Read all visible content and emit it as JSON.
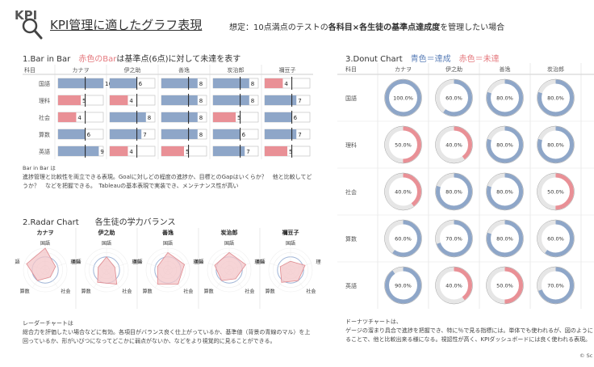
{
  "header": {
    "logo_text": "KPI",
    "title": "KPI管理に適したグラフ表現",
    "subtitle_pre": "想定：10点満点のテストの",
    "subtitle_bold": "各科目×各生徒の基準点達成度",
    "subtitle_post": "を管理したい場合"
  },
  "colors": {
    "blue": "#8ea6c8",
    "red": "#e99096",
    "grid": "#d9d9d9",
    "radar_fill": "#f3c6c8",
    "radar_line": "#e08a8f"
  },
  "section1": {
    "title_pre": "1.Bar in Bar　",
    "title_red": "赤色のBar",
    "title_post": "は基準点(6点)に対して未達を表す",
    "corner_label": "科目",
    "note_head": "Bar in Bar は",
    "note_line1": "進捗管理と比較性を両立できる表現。Goalに対しどの程度の進捗か、目標とのGapはいくらか？　他と比較してど",
    "note_line2": "うか？　などを把握できる。　Tableauの基本表現で実装でき、メンテナンス性が高い"
  },
  "section2": {
    "title": "2.Radar Chart　　各生徒の学力バランス",
    "note_head": "レーダーチャートは",
    "note_line1": "総合力を評価したい場合などに有効。各項目がバランス良く仕上がっているか、基準値（背景の青線のマル）を上",
    "note_line2": "回っているか、形がいびつになってどこかに弱点がないか、などをより視覚的に見ることができる。"
  },
  "section3": {
    "title_pre": "3.Donut Chart　",
    "title_blue": "青色＝達成",
    "title_red": "赤色＝未達",
    "corner_label": "科目",
    "note_head": "ドーナツチャートは、",
    "note_line1": "ゲージの溜まり具合で進捗を把握でき、特に％で見る指標には。単体でも使われるが、図のように",
    "note_line2": "ることで、他と比較出来る様になる。視認性が高く、KPIダッシュボードには良く使われる表現。"
  },
  "footer": {
    "credit": "© Sc"
  },
  "chart_data": [
    {
      "type": "bar",
      "title": "Bar in Bar",
      "students": [
        "カナヲ",
        "伊之助",
        "善逸",
        "炭治郎",
        "禰豆子"
      ],
      "categories": [
        "国語",
        "理科",
        "社会",
        "算数",
        "英語"
      ],
      "target": 6,
      "max": 10,
      "series": [
        {
          "name": "カナヲ",
          "values": [
            10,
            5,
            4,
            6,
            9
          ]
        },
        {
          "name": "伊之助",
          "values": [
            6,
            4,
            8,
            7,
            4
          ]
        },
        {
          "name": "善逸",
          "values": [
            8,
            8,
            8,
            8,
            5
          ]
        },
        {
          "name": "炭治郎",
          "values": [
            8,
            8,
            5,
            6,
            7
          ]
        },
        {
          "name": "禰豆子",
          "values": [
            4,
            7,
            6,
            7,
            5
          ]
        }
      ]
    },
    {
      "type": "radar",
      "students": [
        "カナヲ",
        "伊之助",
        "善逸",
        "炭治郎",
        "禰豆子"
      ],
      "axes": [
        "国語",
        "理科",
        "社会",
        "算数",
        "英語"
      ],
      "max": 10,
      "target": 6,
      "series": [
        {
          "name": "カナヲ",
          "values": [
            10,
            5,
            4,
            6,
            9
          ]
        },
        {
          "name": "伊之助",
          "values": [
            6,
            4,
            8,
            7,
            4
          ]
        },
        {
          "name": "善逸",
          "values": [
            8,
            8,
            8,
            8,
            5
          ]
        },
        {
          "name": "炭治郎",
          "values": [
            8,
            8,
            5,
            6,
            7
          ]
        },
        {
          "name": "禰豆子",
          "values": [
            4,
            7,
            6,
            7,
            5
          ]
        }
      ]
    },
    {
      "type": "pie",
      "subtype": "donut",
      "students": [
        "カナヲ",
        "伊之助",
        "善逸",
        "炭治郎"
      ],
      "categories": [
        "国語",
        "理科",
        "社会",
        "算数",
        "英語"
      ],
      "target_pct": 60,
      "series": [
        {
          "name": "カナヲ",
          "values": [
            100,
            50,
            40,
            60,
            90
          ],
          "labels": [
            "100.0%",
            "50.0%",
            "40.0%",
            "60.0%",
            "90.0%"
          ]
        },
        {
          "name": "伊之助",
          "values": [
            60,
            40,
            80,
            70,
            40
          ],
          "labels": [
            "60.0%",
            "40.0%",
            "80.0%",
            "70.0%",
            "40.0%"
          ]
        },
        {
          "name": "善逸",
          "values": [
            80,
            80,
            80,
            80,
            50
          ],
          "labels": [
            "80.0%",
            "80.0%",
            "80.0%",
            "80.0%",
            "50.0%"
          ]
        },
        {
          "name": "炭治郎",
          "values": [
            80,
            80,
            50,
            60,
            70
          ],
          "labels": [
            "80.0%",
            "80.0%",
            "50.0%",
            "60.0%",
            "70.0%"
          ]
        }
      ]
    }
  ]
}
